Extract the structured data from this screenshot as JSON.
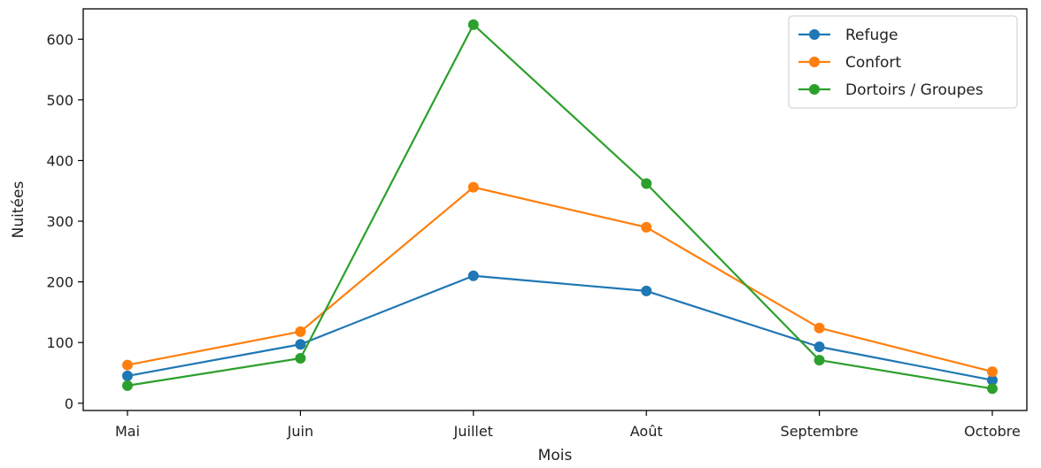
{
  "chart_data": {
    "type": "line",
    "title": "",
    "xlabel": "Mois",
    "ylabel": "Nuitées",
    "categories": [
      "Mai",
      "Juin",
      "Juillet",
      "Août",
      "Septembre",
      "Octobre"
    ],
    "ylim": [
      -12,
      650
    ],
    "yticks": [
      0,
      100,
      200,
      300,
      400,
      500,
      600
    ],
    "grid": false,
    "legend_position": "top-right",
    "series": [
      {
        "name": "Refuge",
        "color": "#1f77b4",
        "values": [
          45,
          97,
          210,
          185,
          93,
          38
        ]
      },
      {
        "name": "Confort",
        "color": "#ff7f0e",
        "values": [
          63,
          118,
          356,
          290,
          124,
          52
        ]
      },
      {
        "name": "Dortoirs / Groupes",
        "color": "#2ca02c",
        "values": [
          29,
          74,
          624,
          362,
          71,
          24
        ]
      }
    ]
  }
}
